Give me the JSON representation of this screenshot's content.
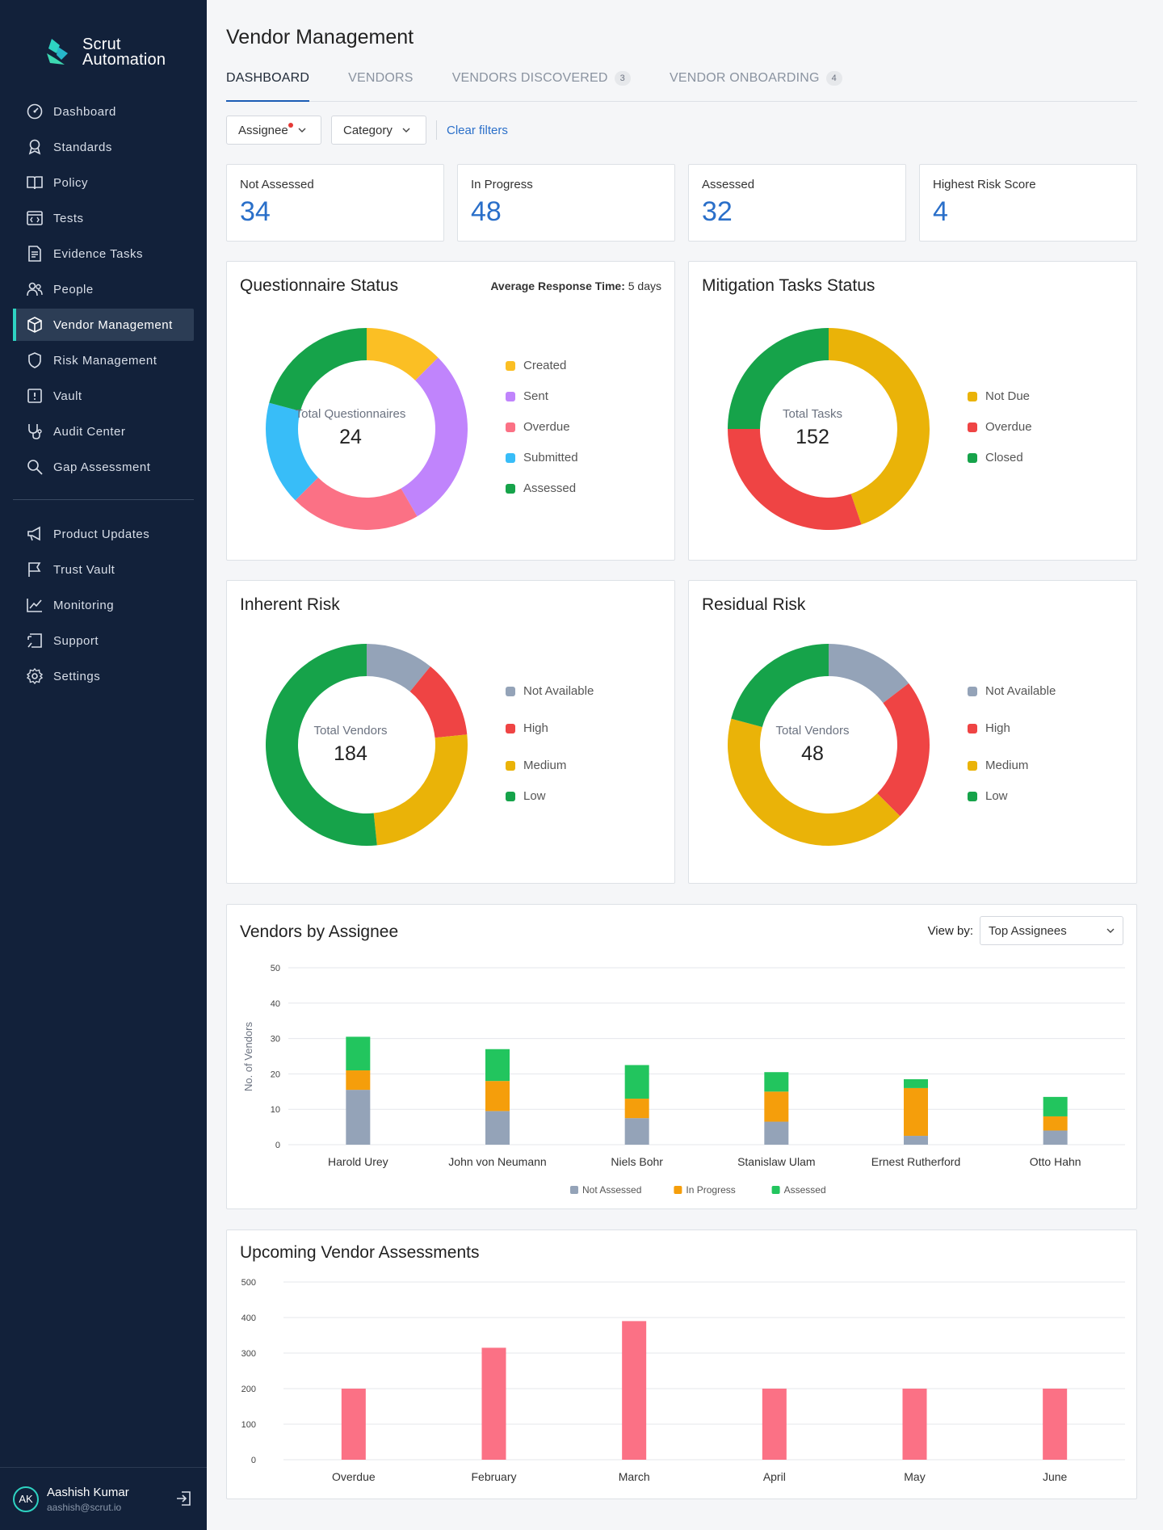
{
  "app": {
    "brand_line1": "Scrut",
    "brand_line2": "Automation"
  },
  "sidebar": {
    "items": [
      {
        "label": "Dashboard",
        "icon": "dashboard-icon"
      },
      {
        "label": "Standards",
        "icon": "award-icon"
      },
      {
        "label": "Policy",
        "icon": "book-icon"
      },
      {
        "label": "Tests",
        "icon": "code-window-icon"
      },
      {
        "label": "Evidence Tasks",
        "icon": "document-list-icon"
      },
      {
        "label": "People",
        "icon": "people-icon"
      },
      {
        "label": "Vendor Management",
        "icon": "box-icon",
        "active": true
      },
      {
        "label": "Risk Management",
        "icon": "shield-icon"
      },
      {
        "label": "Vault",
        "icon": "vault-icon"
      },
      {
        "label": "Audit Center",
        "icon": "stethoscope-icon"
      },
      {
        "label": "Gap Assessment",
        "icon": "search-icon"
      }
    ],
    "secondary_items": [
      {
        "label": "Product Updates",
        "icon": "megaphone-icon"
      },
      {
        "label": "Trust Vault",
        "icon": "flag-icon"
      },
      {
        "label": "Monitoring",
        "icon": "chart-line-icon"
      },
      {
        "label": "Support",
        "icon": "support-icon"
      },
      {
        "label": "Settings",
        "icon": "gear-icon"
      }
    ],
    "user": {
      "initials": "AK",
      "name": "Aashish Kumar",
      "email": "aashish@scrut.io"
    }
  },
  "header": {
    "title": "Vendor Management",
    "tabs": [
      {
        "label": "DASHBOARD",
        "active": true
      },
      {
        "label": "VENDORS"
      },
      {
        "label": "VENDORS DISCOVERED",
        "count": "3"
      },
      {
        "label": "VENDOR ONBOARDING",
        "count": "4"
      }
    ]
  },
  "filters": {
    "assignee": "Assignee",
    "category": "Category",
    "clear": "Clear filters"
  },
  "stats": [
    {
      "label": "Not Assessed",
      "value": "34"
    },
    {
      "label": "In Progress",
      "value": "48"
    },
    {
      "label": "Assessed",
      "value": "32"
    },
    {
      "label": "Highest Risk Score",
      "value": "4"
    }
  ],
  "questionnaire": {
    "title": "Questionnaire Status",
    "avg_label": "Average Response Time:",
    "avg_value": "5 days",
    "center_label": "Total Questionnaires",
    "center_value": "24",
    "legend": [
      {
        "label": "Created",
        "color": "#fbbf24"
      },
      {
        "label": "Sent",
        "color": "#c084fc"
      },
      {
        "label": "Overdue",
        "color": "#fb7185"
      },
      {
        "label": "Submitted",
        "color": "#38bdf8"
      },
      {
        "label": "Assessed",
        "color": "#16a34a"
      }
    ]
  },
  "mitigation": {
    "title": "Mitigation Tasks Status",
    "center_label": "Total Tasks",
    "center_value": "152",
    "legend": [
      {
        "label": "Not Due",
        "color": "#eab308"
      },
      {
        "label": "Overdue",
        "color": "#ef4444"
      },
      {
        "label": "Closed",
        "color": "#16a34a"
      }
    ]
  },
  "inherent": {
    "title": "Inherent Risk",
    "center_label": "Total Vendors",
    "center_value": "184",
    "legend": [
      {
        "label": "Not Available",
        "color": "#94a3b8"
      },
      {
        "label": "High",
        "color": "#ef4444"
      },
      {
        "label": "Medium",
        "color": "#eab308"
      },
      {
        "label": "Low",
        "color": "#16a34a"
      }
    ]
  },
  "residual": {
    "title": "Residual Risk",
    "center_label": "Total Vendors",
    "center_value": "48",
    "legend": [
      {
        "label": "Not Available",
        "color": "#94a3b8"
      },
      {
        "label": "High",
        "color": "#ef4444"
      },
      {
        "label": "Medium",
        "color": "#eab308"
      },
      {
        "label": "Low",
        "color": "#16a34a"
      }
    ]
  },
  "assignee_chart": {
    "title": "Vendors by Assignee",
    "viewby_label": "View by:",
    "viewby_value": "Top Assignees"
  },
  "upcoming_chart": {
    "title": "Upcoming Vendor Assessments"
  },
  "chart_data": [
    {
      "type": "pie",
      "title": "Questionnaire Status",
      "categories": [
        "Created",
        "Sent",
        "Overdue",
        "Submitted",
        "Assessed"
      ],
      "values": [
        3,
        7,
        5,
        4,
        5
      ],
      "colors": [
        "#fbbf24",
        "#c084fc",
        "#fb7185",
        "#38bdf8",
        "#16a34a"
      ]
    },
    {
      "type": "pie",
      "title": "Mitigation Tasks Status",
      "categories": [
        "Not Due",
        "Overdue",
        "Closed"
      ],
      "values": [
        68,
        46,
        38
      ],
      "colors": [
        "#eab308",
        "#ef4444",
        "#16a34a"
      ]
    },
    {
      "type": "pie",
      "title": "Inherent Risk",
      "categories": [
        "Not Available",
        "High",
        "Medium",
        "Low"
      ],
      "values": [
        20,
        23,
        46,
        95
      ],
      "colors": [
        "#94a3b8",
        "#ef4444",
        "#eab308",
        "#16a34a"
      ]
    },
    {
      "type": "pie",
      "title": "Residual Risk",
      "categories": [
        "Not Available",
        "High",
        "Medium",
        "Low"
      ],
      "values": [
        7,
        11,
        20,
        10
      ],
      "colors": [
        "#94a3b8",
        "#ef4444",
        "#eab308",
        "#16a34a"
      ]
    },
    {
      "type": "bar",
      "stacked": true,
      "title": "Vendors by Assignee",
      "ylabel": "No. of Vendors",
      "ylim": [
        0,
        50
      ],
      "yticks": [
        0,
        10,
        20,
        30,
        40,
        50
      ],
      "categories": [
        "Harold Urey",
        "John von Neumann",
        "Niels Bohr",
        "Stanislaw Ulam",
        "Ernest Rutherford",
        "Otto Hahn"
      ],
      "series": [
        {
          "name": "Not Assessed",
          "color": "#94a3b8",
          "values": [
            15.5,
            9.5,
            7.5,
            6.5,
            2.5,
            4
          ]
        },
        {
          "name": "In Progress",
          "color": "#f59e0b",
          "values": [
            5.5,
            8.5,
            5.5,
            8.5,
            13.5,
            4
          ]
        },
        {
          "name": "Assessed",
          "color": "#22c55e",
          "values": [
            9.5,
            9,
            9.5,
            5.5,
            2.5,
            5.5
          ]
        }
      ],
      "legend": "bottom"
    },
    {
      "type": "bar",
      "title": "Upcoming Vendor Assessments",
      "ylim": [
        0,
        500
      ],
      "yticks": [
        0,
        100,
        200,
        300,
        400,
        500
      ],
      "categories": [
        "Overdue",
        "February",
        "March",
        "April",
        "May",
        "June"
      ],
      "values": [
        200,
        315,
        390,
        200,
        200,
        200
      ],
      "color": "#fb7185"
    }
  ]
}
